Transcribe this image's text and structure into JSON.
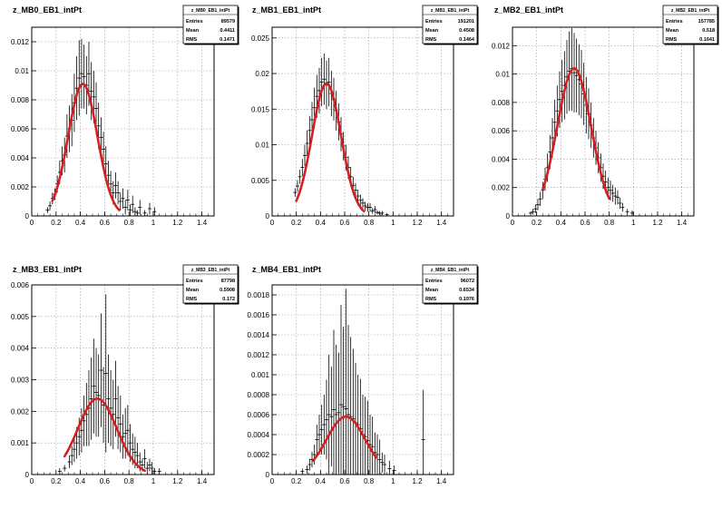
{
  "chart_data": [
    {
      "type": "scatter",
      "title": "z_MB0_EB1_intPt",
      "xlim": [
        0,
        1.5
      ],
      "ylim": [
        0,
        0.013
      ],
      "xticks": [
        0,
        0.2,
        0.4,
        0.6,
        0.8,
        1,
        1.2,
        1.4
      ],
      "xtick_labels": [
        "0",
        "0.2",
        "0.4",
        "0.6",
        "0.8",
        "1",
        "1.2",
        "1.4"
      ],
      "yticks": [
        0,
        0.002,
        0.004,
        0.006,
        0.008,
        0.01,
        0.012
      ],
      "ytick_labels": [
        "0",
        "0.002",
        "0.004",
        "0.006",
        "0.008",
        "0.01",
        "0.012"
      ],
      "grid": true,
      "stats": {
        "name": "z_MB0_EB1_intPt",
        "rows": [
          [
            "Entries",
            "89579"
          ],
          [
            "Mean",
            "0.4411"
          ],
          [
            "RMS",
            "0.1471"
          ]
        ]
      },
      "fit": {
        "amp": 0.0091,
        "mean": 0.42,
        "sigma": 0.12,
        "xmin": 0.17,
        "xmax": 0.72
      },
      "series": [
        {
          "kind": "histogram-with-errors",
          "x": [
            0.13,
            0.15,
            0.17,
            0.19,
            0.21,
            0.23,
            0.25,
            0.27,
            0.29,
            0.31,
            0.33,
            0.35,
            0.37,
            0.39,
            0.41,
            0.43,
            0.45,
            0.47,
            0.49,
            0.51,
            0.53,
            0.55,
            0.57,
            0.59,
            0.61,
            0.63,
            0.65,
            0.67,
            0.69,
            0.71,
            0.73,
            0.75,
            0.77,
            0.79,
            0.81,
            0.83,
            0.85,
            0.87,
            0.89,
            0.93,
            0.97,
            1.01
          ],
          "y": [
            0.0004,
            0.0007,
            0.0012,
            0.0015,
            0.0022,
            0.003,
            0.0038,
            0.0042,
            0.0055,
            0.006,
            0.0066,
            0.0078,
            0.0088,
            0.0095,
            0.0098,
            0.0096,
            0.009,
            0.0098,
            0.0086,
            0.0082,
            0.0074,
            0.0062,
            0.0054,
            0.0046,
            0.0036,
            0.0028,
            0.0022,
            0.0016,
            0.0021,
            0.0016,
            0.001,
            0.0012,
            0.0006,
            0.0011,
            0.0004,
            0.0008,
            0.0003,
            0.0002,
            0.0006,
            0.0002,
            0.0005,
            0.0003
          ],
          "err": [
            0.0002,
            0.0003,
            0.0004,
            0.0004,
            0.0006,
            0.0008,
            0.001,
            0.0012,
            0.0015,
            0.0016,
            0.0018,
            0.002,
            0.0022,
            0.0026,
            0.0024,
            0.0022,
            0.002,
            0.0022,
            0.002,
            0.0018,
            0.0018,
            0.0016,
            0.0014,
            0.0012,
            0.0012,
            0.001,
            0.0009,
            0.0008,
            0.0009,
            0.0008,
            0.0006,
            0.0007,
            0.0005,
            0.0007,
            0.0004,
            0.0006,
            0.0003,
            0.0002,
            0.0005,
            0.0002,
            0.0004,
            0.0003
          ]
        }
      ]
    },
    {
      "type": "scatter",
      "title": "z_MB1_EB1_intPt",
      "xlim": [
        0,
        1.5
      ],
      "ylim": [
        0,
        0.0265
      ],
      "xticks": [
        0,
        0.2,
        0.4,
        0.6,
        0.8,
        1,
        1.2,
        1.4
      ],
      "xtick_labels": [
        "0",
        "0.2",
        "0.4",
        "0.6",
        "0.8",
        "1",
        "1.2",
        "1.4"
      ],
      "yticks": [
        0,
        0.005,
        0.01,
        0.015,
        0.02,
        0.025
      ],
      "ytick_labels": [
        "0",
        "0.005",
        "0.01",
        "0.015",
        "0.02",
        "0.025"
      ],
      "grid": true,
      "stats": {
        "name": "z_MB1_EB1_intPt",
        "rows": [
          [
            "Entries",
            "191201"
          ],
          [
            "Mean",
            "0.4508"
          ],
          [
            "RMS",
            "0.1464"
          ]
        ]
      },
      "fit": {
        "amp": 0.0186,
        "mean": 0.45,
        "sigma": 0.12,
        "xmin": 0.2,
        "xmax": 0.76
      },
      "series": [
        {
          "kind": "histogram-with-errors",
          "x": [
            0.19,
            0.21,
            0.23,
            0.25,
            0.27,
            0.29,
            0.31,
            0.33,
            0.35,
            0.37,
            0.39,
            0.41,
            0.43,
            0.45,
            0.47,
            0.49,
            0.51,
            0.53,
            0.55,
            0.57,
            0.59,
            0.61,
            0.63,
            0.65,
            0.67,
            0.69,
            0.71,
            0.73,
            0.75,
            0.77,
            0.79,
            0.81,
            0.83,
            0.85,
            0.87,
            0.89,
            0.91,
            0.95
          ],
          "y": [
            0.0033,
            0.0042,
            0.0055,
            0.0068,
            0.0085,
            0.0102,
            0.012,
            0.0135,
            0.0152,
            0.0168,
            0.0176,
            0.0188,
            0.0192,
            0.0184,
            0.0188,
            0.0172,
            0.0164,
            0.0148,
            0.0132,
            0.0115,
            0.0098,
            0.0082,
            0.0068,
            0.0055,
            0.0043,
            0.0036,
            0.0028,
            0.0022,
            0.0018,
            0.0014,
            0.0012,
            0.0012,
            0.0007,
            0.0009,
            0.0005,
            0.0004,
            0.0004,
            0.0002
          ],
          "err": [
            0.0006,
            0.0008,
            0.001,
            0.0012,
            0.0015,
            0.0018,
            0.002,
            0.0025,
            0.0028,
            0.003,
            0.0032,
            0.0034,
            0.0036,
            0.0034,
            0.0034,
            0.0032,
            0.003,
            0.0028,
            0.0026,
            0.0024,
            0.002,
            0.0018,
            0.0016,
            0.0014,
            0.0012,
            0.001,
            0.0009,
            0.0008,
            0.0007,
            0.0006,
            0.0006,
            0.0006,
            0.0004,
            0.0005,
            0.0003,
            0.0003,
            0.0003,
            0.0002
          ]
        }
      ]
    },
    {
      "type": "scatter",
      "title": "z_MB2_EB1_intPt",
      "xlim": [
        0,
        1.5
      ],
      "ylim": [
        0,
        0.0133
      ],
      "xticks": [
        0,
        0.2,
        0.4,
        0.6,
        0.8,
        1,
        1.2,
        1.4
      ],
      "xtick_labels": [
        "0",
        "0.2",
        "0.4",
        "0.6",
        "0.8",
        "1",
        "1.2",
        "1.4"
      ],
      "yticks": [
        0,
        0.002,
        0.004,
        0.006,
        0.008,
        0.01,
        0.012
      ],
      "ytick_labels": [
        "0",
        "0.002",
        "0.004",
        "0.006",
        "0.008",
        "0.01",
        "0.012"
      ],
      "grid": true,
      "stats": {
        "name": "z_MB2_EB1_intPt",
        "rows": [
          [
            "Entries",
            "157785"
          ],
          [
            "Mean",
            "0.518"
          ],
          [
            "RMS",
            "0.1641"
          ]
        ]
      },
      "fit": {
        "amp": 0.0104,
        "mean": 0.51,
        "sigma": 0.14,
        "xmin": 0.25,
        "xmax": 0.8
      },
      "series": [
        {
          "kind": "histogram-with-errors",
          "x": [
            0.15,
            0.17,
            0.19,
            0.21,
            0.23,
            0.25,
            0.27,
            0.29,
            0.31,
            0.33,
            0.35,
            0.37,
            0.39,
            0.41,
            0.43,
            0.45,
            0.47,
            0.49,
            0.51,
            0.53,
            0.55,
            0.57,
            0.59,
            0.61,
            0.63,
            0.65,
            0.67,
            0.69,
            0.71,
            0.73,
            0.75,
            0.77,
            0.79,
            0.81,
            0.83,
            0.85,
            0.87,
            0.89,
            0.91,
            0.95,
            0.99
          ],
          "y": [
            0.0002,
            0.0003,
            0.0005,
            0.0008,
            0.0012,
            0.0018,
            0.0026,
            0.0034,
            0.0045,
            0.0055,
            0.0066,
            0.0074,
            0.0082,
            0.0088,
            0.0092,
            0.0098,
            0.0102,
            0.0104,
            0.0101,
            0.0099,
            0.0096,
            0.0093,
            0.0086,
            0.0078,
            0.0072,
            0.0064,
            0.0055,
            0.0048,
            0.0041,
            0.0034,
            0.0028,
            0.0024,
            0.002,
            0.0018,
            0.0016,
            0.0014,
            0.0013,
            0.0009,
            0.0006,
            0.0003,
            0.0002
          ],
          "err": [
            0.0001,
            0.0002,
            0.0003,
            0.0004,
            0.0005,
            0.0006,
            0.0008,
            0.001,
            0.0012,
            0.0014,
            0.0016,
            0.0018,
            0.002,
            0.0022,
            0.0024,
            0.0026,
            0.0028,
            0.003,
            0.0028,
            0.0026,
            0.0025,
            0.0024,
            0.0022,
            0.002,
            0.0018,
            0.0016,
            0.0014,
            0.0012,
            0.0011,
            0.001,
            0.0009,
            0.0008,
            0.0007,
            0.0007,
            0.0006,
            0.0006,
            0.0005,
            0.0004,
            0.0003,
            0.0002,
            0.0002
          ]
        }
      ]
    },
    {
      "type": "scatter",
      "title": "z_MB3_EB1_intPt",
      "xlim": [
        0,
        1.5
      ],
      "ylim": [
        0,
        0.006
      ],
      "xticks": [
        0,
        0.2,
        0.4,
        0.6,
        0.8,
        1,
        1.2,
        1.4
      ],
      "xtick_labels": [
        "0",
        "0.2",
        "0.4",
        "0.6",
        "0.8",
        "1",
        "1.2",
        "1.4"
      ],
      "yticks": [
        0,
        0.001,
        0.002,
        0.003,
        0.004,
        0.005,
        0.006
      ],
      "ytick_labels": [
        "0",
        "0.001",
        "0.002",
        "0.003",
        "0.004",
        "0.005",
        "0.006"
      ],
      "grid": true,
      "stats": {
        "name": "z_MB3_EB1_intPt",
        "rows": [
          [
            "Entries",
            "87798"
          ],
          [
            "Mean",
            "0.5908"
          ],
          [
            "RMS",
            "0.172"
          ]
        ]
      },
      "fit": {
        "amp": 0.0024,
        "mean": 0.54,
        "sigma": 0.16,
        "xmin": 0.27,
        "xmax": 0.93
      },
      "series": [
        {
          "kind": "histogram-with-errors",
          "x": [
            0.23,
            0.27,
            0.31,
            0.33,
            0.35,
            0.37,
            0.39,
            0.41,
            0.43,
            0.45,
            0.47,
            0.49,
            0.51,
            0.53,
            0.55,
            0.57,
            0.59,
            0.61,
            0.63,
            0.65,
            0.67,
            0.69,
            0.71,
            0.73,
            0.75,
            0.77,
            0.79,
            0.81,
            0.83,
            0.85,
            0.87,
            0.89,
            0.91,
            0.93,
            0.95,
            0.97,
            0.99,
            1.01,
            1.05
          ],
          "y": [
            0.0001,
            0.0002,
            0.0004,
            0.0006,
            0.0008,
            0.001,
            0.0012,
            0.0014,
            0.0017,
            0.0019,
            0.0021,
            0.0024,
            0.0028,
            0.0026,
            0.0025,
            0.0033,
            0.0022,
            0.0032,
            0.0024,
            0.0021,
            0.0019,
            0.0024,
            0.0018,
            0.0016,
            0.0012,
            0.0013,
            0.0014,
            0.001,
            0.0008,
            0.0007,
            0.0006,
            0.0004,
            0.0003,
            0.0005,
            0.0002,
            0.0003,
            0.0002,
            0.0001,
            0.0001
          ],
          "err": [
            0.0001,
            0.0001,
            0.0002,
            0.0003,
            0.0004,
            0.0005,
            0.0006,
            0.0007,
            0.0008,
            0.001,
            0.0012,
            0.0013,
            0.0015,
            0.0014,
            0.0013,
            0.0018,
            0.0012,
            0.0025,
            0.0014,
            0.0012,
            0.0011,
            0.0012,
            0.001,
            0.0009,
            0.0007,
            0.0008,
            0.0008,
            0.0006,
            0.0005,
            0.0005,
            0.0004,
            0.0003,
            0.0002,
            0.0003,
            0.0002,
            0.0002,
            0.0002,
            0.0001,
            0.0001
          ]
        }
      ]
    },
    {
      "type": "scatter",
      "title": "z_MB4_EB1_intPt",
      "xlim": [
        0,
        1.5
      ],
      "ylim": [
        0,
        0.0019
      ],
      "xticks": [
        0,
        0.2,
        0.4,
        0.6,
        0.8,
        1,
        1.2,
        1.4
      ],
      "xtick_labels": [
        "0",
        "0.2",
        "0.4",
        "0.6",
        "0.8",
        "1",
        "1.2",
        "1.4"
      ],
      "yticks": [
        0,
        0.0002,
        0.0004,
        0.0006,
        0.0008,
        0.001,
        0.0012,
        0.0014,
        0.0016,
        0.0018
      ],
      "ytick_labels": [
        "0",
        "0.0002",
        "0.0004",
        "0.0006",
        "0.0008",
        "0.001",
        "0.0012",
        "0.0014",
        "0.0016",
        "0.0018"
      ],
      "grid": true,
      "stats": {
        "name": "z_MB4_EB1_intPt",
        "rows": [
          [
            "Entries",
            "96072"
          ],
          [
            "Mean",
            "0.6534"
          ],
          [
            "RMS",
            "0.1976"
          ]
        ]
      },
      "fit": {
        "amp": 0.00058,
        "mean": 0.61,
        "sigma": 0.16,
        "xmin": 0.34,
        "xmax": 0.86
      },
      "series": [
        {
          "kind": "histogram-with-errors",
          "x": [
            0.25,
            0.29,
            0.31,
            0.33,
            0.35,
            0.37,
            0.39,
            0.41,
            0.43,
            0.45,
            0.47,
            0.49,
            0.51,
            0.53,
            0.55,
            0.57,
            0.59,
            0.61,
            0.63,
            0.65,
            0.67,
            0.69,
            0.71,
            0.73,
            0.75,
            0.77,
            0.79,
            0.81,
            0.83,
            0.85,
            0.87,
            0.89,
            0.91,
            0.93,
            0.97,
            1.01,
            1.25
          ],
          "y": [
            3e-05,
            5e-05,
            0.0001,
            0.00015,
            0.0002,
            0.00035,
            0.0004,
            0.00045,
            0.0005,
            0.00055,
            0.0006,
            0.00058,
            0.00065,
            0.0006,
            0.00062,
            0.0007,
            0.00068,
            0.00066,
            0.0006,
            0.00058,
            0.00056,
            0.00052,
            0.0005,
            0.00046,
            0.0004,
            0.00038,
            0.00034,
            0.0003,
            0.00028,
            0.00022,
            0.0002,
            0.00015,
            0.00012,
            0.0001,
            6e-05,
            4e-05,
            0.00035
          ],
          "err": [
            3e-05,
            4e-05,
            6e-05,
            8e-05,
            0.0001,
            0.00015,
            0.0002,
            0.00025,
            0.0003,
            0.0004,
            0.0006,
            0.0005,
            0.0008,
            0.0007,
            0.0006,
            0.001,
            0.0008,
            0.0012,
            0.0009,
            0.0008,
            0.0007,
            0.0006,
            0.0005,
            0.0005,
            0.0004,
            0.0004,
            0.0004,
            0.0003,
            0.0003,
            0.0002,
            0.0002,
            0.0002,
            0.0001,
            0.0001,
            8e-05,
            5e-05,
            0.0005
          ]
        }
      ]
    }
  ]
}
